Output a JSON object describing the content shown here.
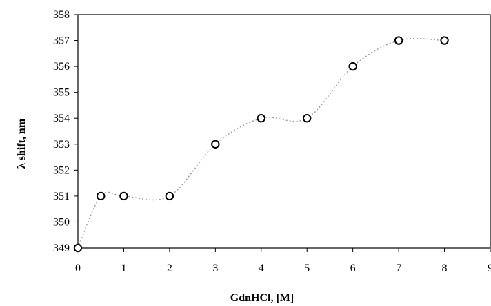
{
  "chart_data": {
    "type": "scatter",
    "xlabel": "GdnHCl, [M]",
    "ylabel": "λ shift, nm",
    "xlim": [
      0,
      9
    ],
    "ylim": [
      349,
      358
    ],
    "x_ticks": [
      "0",
      "1",
      "2",
      "3",
      "4",
      "5",
      "6",
      "7",
      "8",
      "9"
    ],
    "y_ticks": [
      "349",
      "350",
      "351",
      "352",
      "353",
      "354",
      "355",
      "356",
      "357",
      "358"
    ],
    "grid": false,
    "legend": "none",
    "trendline": "smooth dotted curve through points",
    "series": [
      {
        "x": [
          0,
          0.5,
          1,
          2,
          3,
          4,
          5,
          6,
          7,
          8
        ],
        "y": [
          349,
          351,
          351,
          351,
          353,
          354,
          354,
          356,
          357,
          357
        ]
      }
    ],
    "colors": {
      "marker_edge": "#000000",
      "marker_fill": "#ffffff",
      "trendline": "#9a9a9a",
      "axis": "#000000"
    }
  }
}
